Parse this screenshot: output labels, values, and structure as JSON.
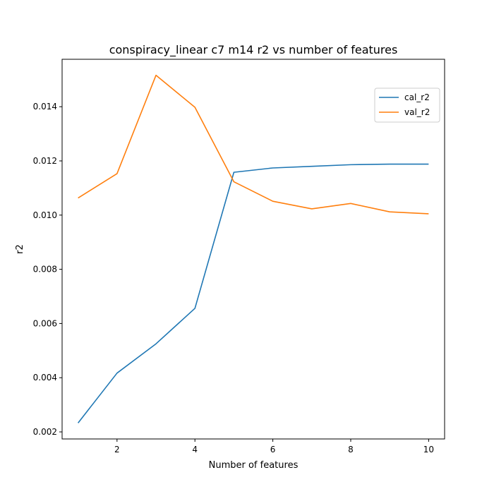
{
  "chart_data": {
    "type": "line",
    "title": "conspiracy_linear c7 m14 r2 vs number of features",
    "xlabel": "Number of features",
    "ylabel": "r2",
    "xlim": [
      0.59,
      10.41
    ],
    "ylim": [
      0.00174,
      0.01575
    ],
    "xticks": [
      2,
      4,
      6,
      8,
      10
    ],
    "yticks": [
      0.002,
      0.004,
      0.006,
      0.008,
      0.01,
      0.012,
      0.014
    ],
    "ytick_labels": [
      "0.002",
      "0.004",
      "0.006",
      "0.008",
      "0.010",
      "0.012",
      "0.014"
    ],
    "grid": false,
    "legend_position": "upper right",
    "x": [
      1,
      2,
      3,
      4,
      5,
      6,
      7,
      8,
      9,
      10
    ],
    "series": [
      {
        "name": "cal_r2",
        "color": "#1f77b4",
        "values": [
          0.00233,
          0.00417,
          0.00525,
          0.00656,
          0.01158,
          0.01174,
          0.0118,
          0.01186,
          0.01188,
          0.01188
        ]
      },
      {
        "name": "val_r2",
        "color": "#ff7f0e",
        "values": [
          0.01063,
          0.01153,
          0.01516,
          0.01398,
          0.01123,
          0.01051,
          0.01023,
          0.01043,
          0.01012,
          0.01005
        ]
      }
    ]
  }
}
